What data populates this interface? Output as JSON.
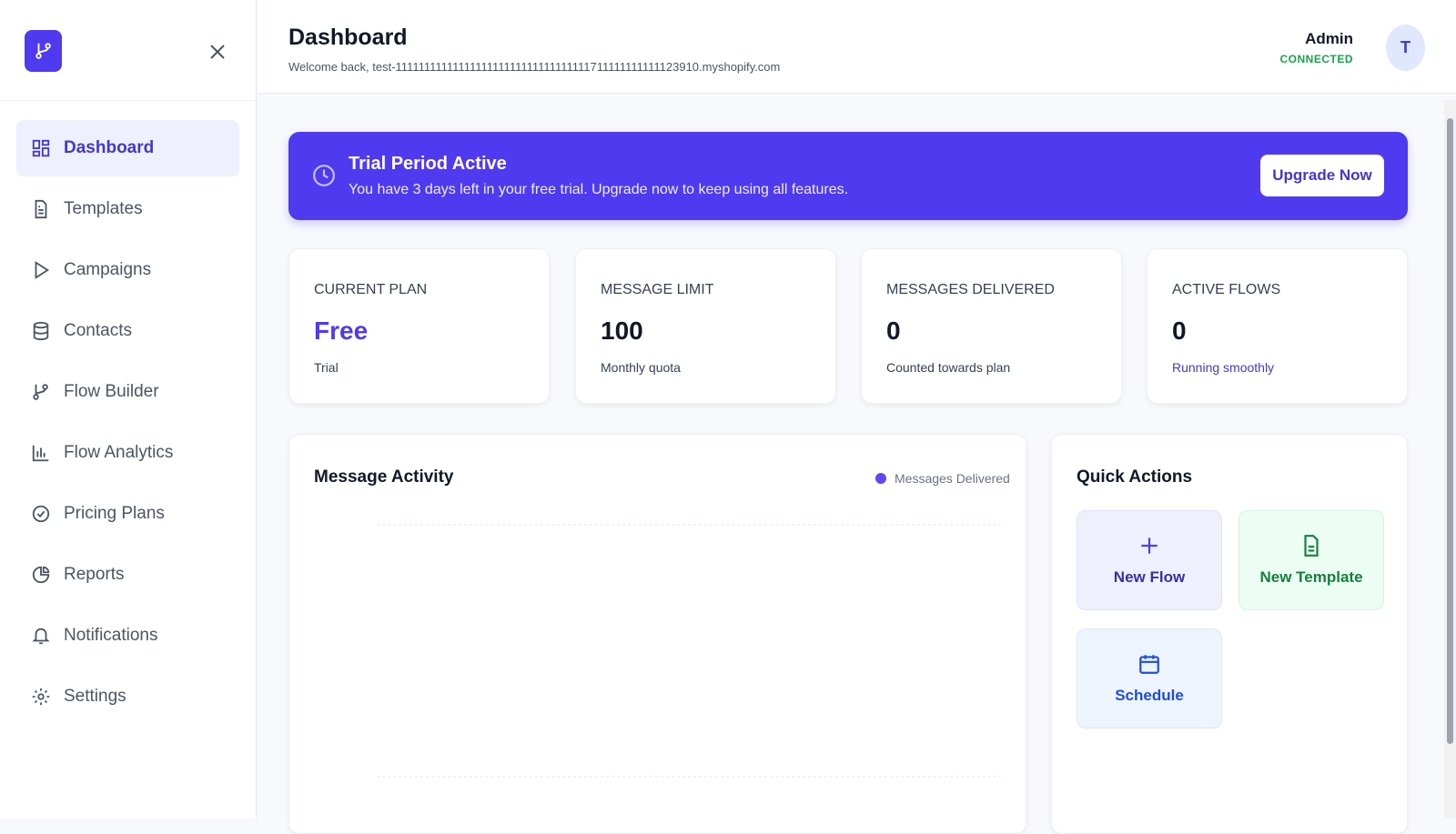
{
  "sidebar": {
    "nav": [
      {
        "label": "Dashboard",
        "active": true
      },
      {
        "label": "Templates"
      },
      {
        "label": "Campaigns"
      },
      {
        "label": "Contacts"
      },
      {
        "label": "Flow Builder"
      },
      {
        "label": "Flow Analytics"
      },
      {
        "label": "Pricing Plans"
      },
      {
        "label": "Reports"
      },
      {
        "label": "Notifications"
      },
      {
        "label": "Settings"
      }
    ]
  },
  "header": {
    "title": "Dashboard",
    "subtitle": "Welcome back, test-1111111111111111111111111111111111711111111111123910.myshopify.com",
    "user": "Admin",
    "status": "CONNECTED",
    "avatar": "T"
  },
  "banner": {
    "title": "Trial Period Active",
    "text": "You have 3 days left in your free trial. Upgrade now to keep using all features.",
    "button": "Upgrade Now"
  },
  "stats": [
    {
      "label": "CURRENT PLAN",
      "value": "Free",
      "caption": "Trial"
    },
    {
      "label": "MESSAGE LIMIT",
      "value": "100",
      "caption": "Monthly quota"
    },
    {
      "label": "MESSAGES DELIVERED",
      "value": "0",
      "caption": "Counted towards plan"
    },
    {
      "label": "ACTIVE FLOWS",
      "value": "0",
      "caption": "Running smoothly"
    }
  ],
  "activity": {
    "title": "Message Activity",
    "legend": "Messages Delivered"
  },
  "quick_actions": {
    "title": "Quick Actions",
    "items": [
      "New Flow",
      "New Template",
      "Schedule"
    ]
  }
}
